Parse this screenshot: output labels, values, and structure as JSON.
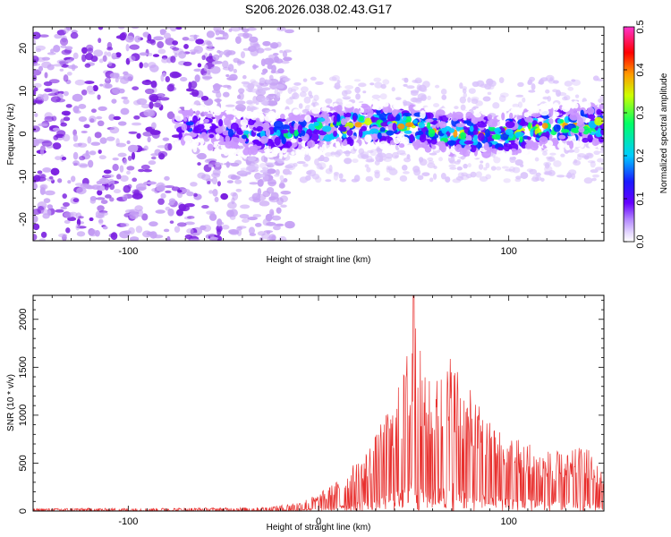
{
  "title": "S206.2026.038.02.43.G17",
  "colors": {
    "series": "#e8302e",
    "frame": "#000000",
    "colorbar": [
      "#ffffff",
      "#cc99ff",
      "#6600ff",
      "#0033ff",
      "#00ccff",
      "#00ff66",
      "#ccff00",
      "#ff9900",
      "#ff0000",
      "#ff33cc"
    ]
  },
  "chart_data": [
    {
      "type": "heatmap",
      "title": "S206.2026.038.02.43.G17",
      "xlabel": "Height of straight line (km)",
      "ylabel": "Frequency (Hz)",
      "xlim": [
        -150,
        150
      ],
      "ylim": [
        -25,
        25
      ],
      "xticks": [
        -100,
        0,
        100
      ],
      "xtick_labels": [
        "-100",
        "",
        "100"
      ],
      "yticks": [
        -20,
        -10,
        0,
        10,
        20
      ],
      "ytick_labels": [
        "-20",
        "-10",
        "0",
        "10",
        "20"
      ],
      "grid": false,
      "colorbar": {
        "label": "Normalized spectral amplitude",
        "range": [
          0.0,
          0.5
        ],
        "ticks": [
          0.0,
          0.1,
          0.2,
          0.3,
          0.4,
          0.5
        ],
        "tick_labels": [
          "0.0",
          "0.1",
          "0.2",
          "0.3",
          "0.4",
          "0.5"
        ],
        "position": "right"
      },
      "energy_band": {
        "center_freq_hz": 1,
        "half_width_hz": 5,
        "onset_km": -75,
        "noise_region_km": [
          -150,
          -30
        ],
        "peak_amplitude": 0.45
      }
    },
    {
      "type": "line",
      "xlabel": "Height of straight line (km)",
      "ylabel": "SNR (10 * v/v)",
      "xlim": [
        -150,
        150
      ],
      "ylim": [
        0,
        2250
      ],
      "xticks": [
        -100,
        0,
        100
      ],
      "xtick_labels": [
        "-100",
        "0",
        "100"
      ],
      "yticks": [
        0,
        500,
        1000,
        1500,
        2000
      ],
      "ytick_labels": [
        "0",
        "500",
        "1000",
        "1500",
        "2000"
      ],
      "grid": false,
      "series": [
        {
          "x": [
            -150,
            -130,
            -110,
            -90,
            -70,
            -50,
            -30,
            -20,
            -10,
            0,
            10,
            20,
            30,
            40,
            45,
            50,
            55,
            60,
            70,
            80,
            90,
            100,
            110,
            120,
            130,
            140,
            150
          ],
          "values": [
            25,
            30,
            28,
            30,
            32,
            35,
            40,
            60,
            100,
            180,
            320,
            520,
            800,
            1200,
            1500,
            2250,
            1450,
            1350,
            1700,
            1250,
            950,
            800,
            750,
            650,
            600,
            700,
            400
          ]
        }
      ]
    }
  ]
}
